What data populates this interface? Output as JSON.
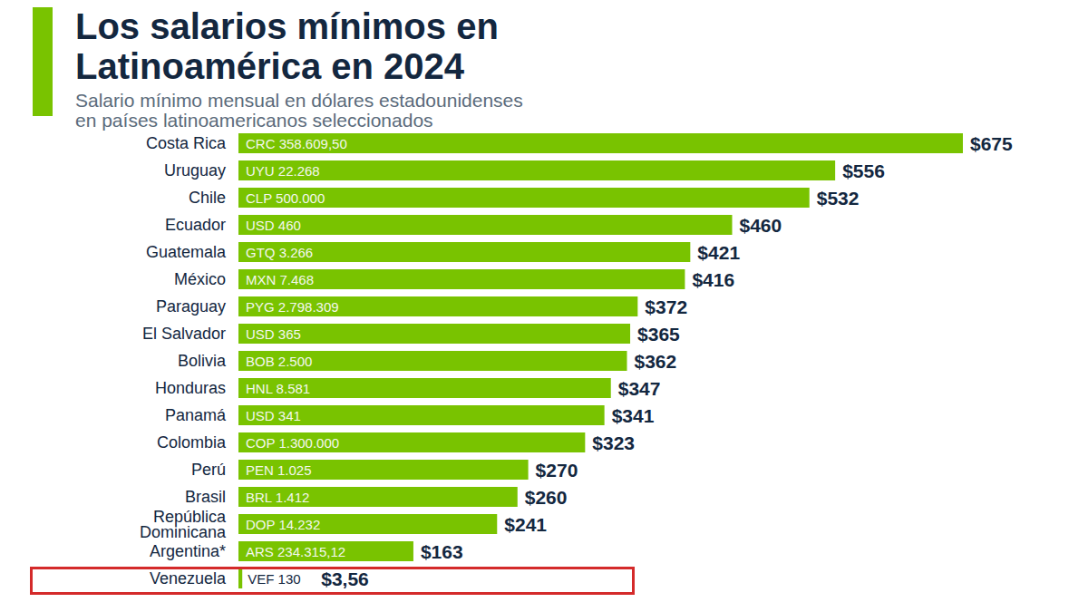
{
  "chart_data": {
    "type": "bar",
    "orientation": "horizontal",
    "title": "Los salarios mínimos en\nLatinoamérica en 2024",
    "subtitle": "Salario mínimo mensual en dólares estadounidenses\nen países latinoamericanos seleccionados",
    "categories": [
      "Costa Rica",
      "Uruguay",
      "Chile",
      "Ecuador",
      "Guatemala",
      "México",
      "Paraguay",
      "El Salvador",
      "Bolivia",
      "Honduras",
      "Panamá",
      "Colombia",
      "Perú",
      "Brasil",
      "República Dominicana",
      "Argentina*",
      "Venezuela"
    ],
    "values": [
      675,
      556,
      532,
      460,
      421,
      416,
      372,
      365,
      362,
      347,
      341,
      323,
      270,
      260,
      241,
      163,
      3.56
    ],
    "value_labels": [
      "$675",
      "$556",
      "$532",
      "$460",
      "$421",
      "$416",
      "$372",
      "$365",
      "$362",
      "$347",
      "$341",
      "$323",
      "$270",
      "$260",
      "$241",
      "$163",
      "$3,56"
    ],
    "local_currency_labels": [
      "CRC 358.609,50",
      "UYU 22.268",
      "CLP 500.000",
      "USD 460",
      "GTQ 3.266",
      "MXN 7.468",
      "PYG 2.798.309",
      "USD 365",
      "BOB 2.500",
      "HNL 8.581",
      "USD 341",
      "COP 1.300.000",
      "PEN 1.025",
      "BRL 1.412",
      "DOP 14.232",
      "ARS 234.315,12",
      "VEF 130"
    ],
    "color": "#79c300",
    "xlim": [
      0,
      675
    ],
    "xticks": [],
    "tick_labels": "y",
    "grid": false,
    "data_labels": true
  }
}
